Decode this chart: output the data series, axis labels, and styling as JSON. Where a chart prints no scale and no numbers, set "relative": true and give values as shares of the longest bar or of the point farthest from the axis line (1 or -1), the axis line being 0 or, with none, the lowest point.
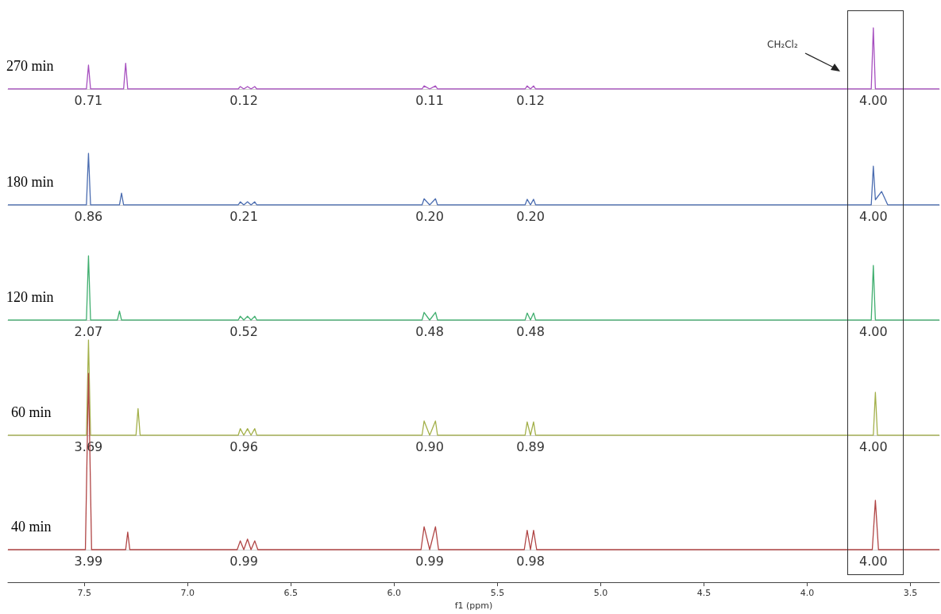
{
  "chart_data": [
    {
      "type": "line",
      "relative": true,
      "xlim": [
        7.87,
        3.36
      ],
      "tick_labels": false,
      "marker": "none",
      "series": [
        {
          "name": "270 min",
          "color": "#a64fbf",
          "x": [
            7.87,
            7.49,
            7.48,
            7.47,
            7.31,
            7.3,
            7.29,
            6.755,
            6.745,
            6.728,
            6.71,
            6.693,
            6.675,
            6.665,
            5.865,
            5.855,
            5.828,
            5.8,
            5.79,
            5.366,
            5.356,
            5.34,
            5.325,
            5.315,
            3.69,
            3.68,
            3.67,
            3.36
          ],
          "values": [
            0,
            0,
            0.39,
            0,
            0,
            0.42,
            0,
            0,
            0.04,
            0,
            0.04,
            0,
            0.04,
            0,
            0,
            0.05,
            0,
            0.05,
            0,
            0,
            0.05,
            0,
            0.05,
            0,
            0,
            1,
            0,
            0
          ]
        }
      ],
      "annotations": [
        {
          "text": "0.71",
          "x": 7.48,
          "y": 0
        },
        {
          "text": "0.12",
          "x": 6.728,
          "y": 0
        },
        {
          "text": "0.11",
          "x": 5.828,
          "y": 0
        },
        {
          "text": "0.12",
          "x": 5.34,
          "y": 0
        },
        {
          "text": "4.00",
          "x": 3.68,
          "y": 0
        },
        "CH₂Cl₂"
      ]
    },
    {
      "type": "line",
      "relative": true,
      "xlim": [
        7.87,
        3.36
      ],
      "tick_labels": false,
      "marker": "none",
      "series": [
        {
          "name": "180 min",
          "color": "#4a6cb0",
          "x": [
            7.87,
            7.49,
            7.48,
            7.47,
            7.33,
            7.32,
            7.31,
            6.755,
            6.745,
            6.728,
            6.71,
            6.693,
            6.675,
            6.665,
            5.865,
            5.855,
            5.828,
            5.8,
            5.79,
            5.366,
            5.356,
            5.34,
            5.325,
            5.315,
            3.69,
            3.68,
            3.67,
            3.64,
            3.61,
            3.36
          ],
          "values": [
            0,
            0,
            1,
            0,
            0,
            0.23,
            0,
            0,
            0.06,
            0,
            0.06,
            0,
            0.06,
            0,
            0,
            0.12,
            0,
            0.12,
            0,
            0,
            0.11,
            0,
            0.11,
            0,
            0,
            0.75,
            0.1,
            0.26,
            0,
            0
          ]
        }
      ],
      "annotations": [
        {
          "text": "0.86",
          "x": 7.48,
          "y": 0
        },
        {
          "text": "0.21",
          "x": 6.728,
          "y": 0
        },
        {
          "text": "0.20",
          "x": 5.828,
          "y": 0
        },
        {
          "text": "0.20",
          "x": 5.34,
          "y": 0
        },
        {
          "text": "4.00",
          "x": 3.68,
          "y": 0
        }
      ]
    },
    {
      "type": "line",
      "relative": true,
      "xlim": [
        7.87,
        3.36
      ],
      "tick_labels": false,
      "marker": "none",
      "series": [
        {
          "name": "120 min",
          "color": "#3fae6e",
          "x": [
            7.87,
            7.49,
            7.48,
            7.47,
            7.34,
            7.33,
            7.32,
            6.755,
            6.745,
            6.728,
            6.71,
            6.693,
            6.675,
            6.665,
            5.865,
            5.855,
            5.828,
            5.8,
            5.79,
            5.366,
            5.356,
            5.34,
            5.325,
            5.315,
            3.69,
            3.68,
            3.67,
            3.36
          ],
          "values": [
            0,
            0,
            1,
            0,
            0,
            0.14,
            0,
            0,
            0.06,
            0,
            0.06,
            0,
            0.06,
            0,
            0,
            0.12,
            0,
            0.12,
            0,
            0,
            0.11,
            0,
            0.11,
            0,
            0,
            0.85,
            0,
            0
          ]
        }
      ],
      "annotations": [
        {
          "text": "2.07",
          "x": 7.48,
          "y": 0
        },
        {
          "text": "0.52",
          "x": 6.728,
          "y": 0
        },
        {
          "text": "0.48",
          "x": 5.828,
          "y": 0
        },
        {
          "text": "0.48",
          "x": 5.34,
          "y": 0
        },
        {
          "text": "4.00",
          "x": 3.68,
          "y": 0
        }
      ]
    },
    {
      "type": "line",
      "relative": true,
      "xlim": [
        7.87,
        3.36
      ],
      "tick_labels": false,
      "marker": "none",
      "series": [
        {
          "name": "60 min",
          "color": "#a3b04a",
          "x": [
            7.87,
            7.49,
            7.48,
            7.47,
            7.25,
            7.24,
            7.23,
            6.755,
            6.745,
            6.728,
            6.71,
            6.693,
            6.675,
            6.665,
            5.865,
            5.855,
            5.828,
            5.8,
            5.79,
            5.366,
            5.356,
            5.34,
            5.325,
            5.315,
            3.68,
            3.67,
            3.66,
            3.36
          ],
          "values": [
            0,
            0,
            1,
            0,
            0,
            0.28,
            0,
            0,
            0.07,
            0,
            0.07,
            0,
            0.07,
            0,
            0,
            0.15,
            0,
            0.15,
            0,
            0,
            0.14,
            0,
            0.14,
            0,
            0,
            0.45,
            0,
            0
          ]
        }
      ],
      "annotations": [
        {
          "text": "3.69",
          "x": 7.48,
          "y": 0
        },
        {
          "text": "0.96",
          "x": 6.728,
          "y": 0
        },
        {
          "text": "0.90",
          "x": 5.828,
          "y": 0
        },
        {
          "text": "0.89",
          "x": 5.34,
          "y": 0
        },
        {
          "text": "4.00",
          "x": 3.68,
          "y": 0
        }
      ]
    },
    {
      "type": "line",
      "relative": true,
      "xlim": [
        7.87,
        3.36
      ],
      "tick_labels": "x",
      "marker": "none",
      "xlabel": "f1 (ppm)",
      "xticks": [
        7.5,
        {
          "value": 7.0,
          "label": "7.0"
        },
        6.5,
        {
          "value": 6.0,
          "label": "6.0"
        },
        5.5,
        {
          "value": 5.0,
          "label": "5.0"
        },
        4.5,
        {
          "value": 4.0,
          "label": "4.0"
        },
        3.5
      ],
      "series": [
        {
          "name": "40 min",
          "color": "#b04545",
          "x": [
            7.87,
            7.495,
            7.48,
            7.465,
            7.3,
            7.29,
            7.28,
            6.76,
            6.745,
            6.728,
            6.71,
            6.693,
            6.675,
            6.66,
            5.87,
            5.855,
            5.828,
            5.8,
            5.785,
            5.37,
            5.356,
            5.34,
            5.325,
            5.31,
            3.685,
            3.67,
            3.655,
            3.36
          ],
          "values": [
            0,
            0,
            1,
            0,
            0,
            0.1,
            0,
            0,
            0.05,
            0,
            0.06,
            0,
            0.05,
            0,
            0,
            0.13,
            0,
            0.13,
            0,
            0,
            0.11,
            0,
            0.11,
            0,
            0,
            0.28,
            0,
            0
          ]
        }
      ],
      "annotations": [
        {
          "text": "3.99",
          "x": 7.48,
          "y": 0
        },
        {
          "text": "0.99",
          "x": 6.728,
          "y": 0
        },
        {
          "text": "0.99",
          "x": 5.828,
          "y": 0
        },
        {
          "text": "0.98",
          "x": 5.34,
          "y": 0
        },
        {
          "text": "4.00",
          "x": 3.68,
          "y": 0
        }
      ]
    }
  ]
}
